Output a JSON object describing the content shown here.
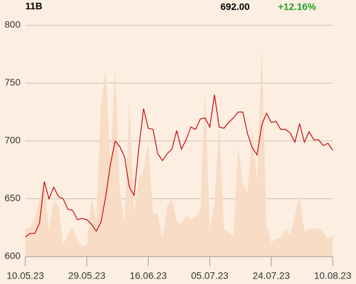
{
  "header": {
    "volume": "11B",
    "price": "692.00",
    "change": "+12.16%"
  },
  "chart_data": {
    "type": "line",
    "categories": [
      "10.05.23",
      null,
      null,
      null,
      null,
      null,
      null,
      null,
      null,
      null,
      null,
      null,
      null,
      "29.05.23",
      null,
      null,
      null,
      null,
      null,
      null,
      null,
      null,
      null,
      null,
      null,
      null,
      "16.06.23",
      null,
      null,
      null,
      null,
      null,
      null,
      null,
      null,
      null,
      null,
      null,
      null,
      "05.07.23",
      null,
      null,
      null,
      null,
      null,
      null,
      null,
      null,
      null,
      null,
      null,
      null,
      "24.07.23",
      null,
      null,
      null,
      null,
      null,
      null,
      null,
      null,
      null,
      null,
      null,
      null,
      "10.08.23"
    ],
    "series": [
      {
        "type": "area",
        "color": "#f8dcc6",
        "values": [
          624,
          625,
          633,
          650,
          662,
          624,
          649,
          644,
          610,
          619,
          625,
          615,
          609,
          611,
          650,
          631,
          733,
          762,
          680,
          764,
          656,
          628,
          737,
          638,
          667,
          674,
          699,
          637,
          637,
          615,
          644,
          650,
          631,
          628,
          636,
          632,
          635,
          640,
          745,
          623,
          647,
          715,
          624,
          621,
          618,
          695,
          663,
          655,
          712,
          665,
          782,
          627,
          612,
          616,
          616,
          624,
          618,
          636,
          654,
          622,
          624,
          624,
          625,
          621,
          615,
          619
        ]
      },
      {
        "type": "line",
        "color": "#cc0000",
        "values": [
          617,
          620,
          620,
          629,
          665,
          650,
          660,
          652,
          650,
          641,
          640,
          632,
          633,
          632,
          628,
          622,
          630,
          652,
          680,
          700,
          695,
          686,
          660,
          653,
          694,
          728,
          711,
          710,
          689,
          683,
          689,
          693,
          709,
          693,
          701,
          712,
          710,
          719,
          720,
          712,
          740,
          712,
          711,
          716,
          720,
          725,
          725,
          706,
          694,
          688,
          714,
          724,
          716,
          717,
          710,
          710,
          707,
          699,
          715,
          699,
          708,
          701,
          701,
          696,
          698,
          692
        ]
      }
    ],
    "ylim": [
      600,
      800
    ],
    "yticks": [
      600,
      650,
      700,
      750,
      800
    ],
    "grid": true
  }
}
